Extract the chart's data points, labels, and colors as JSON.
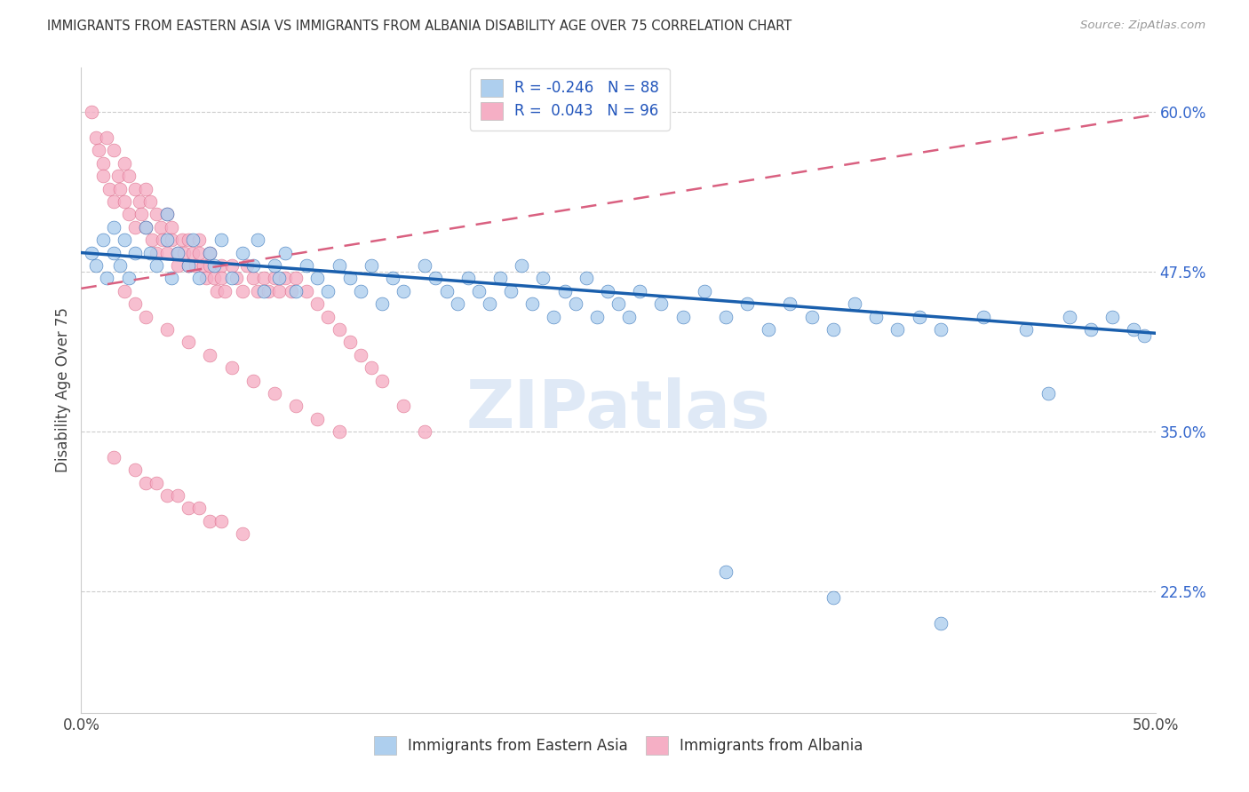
{
  "title": "IMMIGRANTS FROM EASTERN ASIA VS IMMIGRANTS FROM ALBANIA DISABILITY AGE OVER 75 CORRELATION CHART",
  "source": "Source: ZipAtlas.com",
  "ylabel": "Disability Age Over 75",
  "legend_label1": "Immigrants from Eastern Asia",
  "legend_label2": "Immigrants from Albania",
  "R1": -0.246,
  "N1": 88,
  "R2": 0.043,
  "N2": 96,
  "xmin": 0.0,
  "xmax": 0.5,
  "ymin": 0.13,
  "ymax": 0.635,
  "yticks": [
    0.225,
    0.35,
    0.475,
    0.6
  ],
  "ytick_labels": [
    "22.5%",
    "35.0%",
    "47.5%",
    "60.0%"
  ],
  "color_blue": "#aecfee",
  "color_pink": "#f5afc5",
  "line_blue": "#1a5fad",
  "line_pink": "#d96080",
  "watermark_text": "ZIPatlas",
  "background_color": "#ffffff",
  "blue_trend_x0": 0.0,
  "blue_trend_y0": 0.49,
  "blue_trend_x1": 0.5,
  "blue_trend_y1": 0.427,
  "pink_trend_x0": 0.0,
  "pink_trend_y0": 0.462,
  "pink_trend_x1": 0.5,
  "pink_trend_y1": 0.598,
  "blue_x": [
    0.005,
    0.007,
    0.01,
    0.012,
    0.015,
    0.015,
    0.018,
    0.02,
    0.022,
    0.025,
    0.03,
    0.032,
    0.035,
    0.04,
    0.04,
    0.042,
    0.045,
    0.05,
    0.052,
    0.055,
    0.06,
    0.062,
    0.065,
    0.07,
    0.075,
    0.08,
    0.082,
    0.085,
    0.09,
    0.092,
    0.095,
    0.1,
    0.105,
    0.11,
    0.115,
    0.12,
    0.125,
    0.13,
    0.135,
    0.14,
    0.145,
    0.15,
    0.16,
    0.165,
    0.17,
    0.175,
    0.18,
    0.185,
    0.19,
    0.195,
    0.2,
    0.205,
    0.21,
    0.215,
    0.22,
    0.225,
    0.23,
    0.235,
    0.24,
    0.245,
    0.25,
    0.255,
    0.26,
    0.27,
    0.28,
    0.29,
    0.3,
    0.31,
    0.32,
    0.33,
    0.34,
    0.35,
    0.36,
    0.37,
    0.38,
    0.39,
    0.4,
    0.42,
    0.44,
    0.46,
    0.47,
    0.48,
    0.49,
    0.495,
    0.3,
    0.35,
    0.4,
    0.45
  ],
  "blue_y": [
    0.49,
    0.48,
    0.5,
    0.47,
    0.49,
    0.51,
    0.48,
    0.5,
    0.47,
    0.49,
    0.51,
    0.49,
    0.48,
    0.5,
    0.52,
    0.47,
    0.49,
    0.48,
    0.5,
    0.47,
    0.49,
    0.48,
    0.5,
    0.47,
    0.49,
    0.48,
    0.5,
    0.46,
    0.48,
    0.47,
    0.49,
    0.46,
    0.48,
    0.47,
    0.46,
    0.48,
    0.47,
    0.46,
    0.48,
    0.45,
    0.47,
    0.46,
    0.48,
    0.47,
    0.46,
    0.45,
    0.47,
    0.46,
    0.45,
    0.47,
    0.46,
    0.48,
    0.45,
    0.47,
    0.44,
    0.46,
    0.45,
    0.47,
    0.44,
    0.46,
    0.45,
    0.44,
    0.46,
    0.45,
    0.44,
    0.46,
    0.44,
    0.45,
    0.43,
    0.45,
    0.44,
    0.43,
    0.45,
    0.44,
    0.43,
    0.44,
    0.43,
    0.44,
    0.43,
    0.44,
    0.43,
    0.44,
    0.43,
    0.425,
    0.24,
    0.22,
    0.2,
    0.38
  ],
  "pink_x": [
    0.005,
    0.007,
    0.008,
    0.01,
    0.01,
    0.012,
    0.013,
    0.015,
    0.015,
    0.017,
    0.018,
    0.02,
    0.02,
    0.022,
    0.022,
    0.025,
    0.025,
    0.027,
    0.028,
    0.03,
    0.03,
    0.032,
    0.033,
    0.035,
    0.035,
    0.037,
    0.038,
    0.04,
    0.04,
    0.042,
    0.042,
    0.045,
    0.045,
    0.047,
    0.048,
    0.05,
    0.05,
    0.052,
    0.053,
    0.055,
    0.055,
    0.057,
    0.058,
    0.06,
    0.06,
    0.062,
    0.063,
    0.065,
    0.065,
    0.067,
    0.07,
    0.072,
    0.075,
    0.077,
    0.08,
    0.082,
    0.085,
    0.087,
    0.09,
    0.092,
    0.095,
    0.098,
    0.1,
    0.105,
    0.11,
    0.115,
    0.12,
    0.125,
    0.13,
    0.135,
    0.14,
    0.15,
    0.16,
    0.02,
    0.025,
    0.03,
    0.04,
    0.05,
    0.06,
    0.07,
    0.08,
    0.09,
    0.1,
    0.11,
    0.12,
    0.03,
    0.04,
    0.05,
    0.06,
    0.015,
    0.025,
    0.035,
    0.045,
    0.055,
    0.065,
    0.075
  ],
  "pink_y": [
    0.6,
    0.58,
    0.57,
    0.56,
    0.55,
    0.58,
    0.54,
    0.57,
    0.53,
    0.55,
    0.54,
    0.56,
    0.53,
    0.55,
    0.52,
    0.54,
    0.51,
    0.53,
    0.52,
    0.54,
    0.51,
    0.53,
    0.5,
    0.52,
    0.49,
    0.51,
    0.5,
    0.52,
    0.49,
    0.51,
    0.5,
    0.49,
    0.48,
    0.5,
    0.49,
    0.48,
    0.5,
    0.49,
    0.48,
    0.5,
    0.49,
    0.48,
    0.47,
    0.49,
    0.48,
    0.47,
    0.46,
    0.48,
    0.47,
    0.46,
    0.48,
    0.47,
    0.46,
    0.48,
    0.47,
    0.46,
    0.47,
    0.46,
    0.47,
    0.46,
    0.47,
    0.46,
    0.47,
    0.46,
    0.45,
    0.44,
    0.43,
    0.42,
    0.41,
    0.4,
    0.39,
    0.37,
    0.35,
    0.46,
    0.45,
    0.44,
    0.43,
    0.42,
    0.41,
    0.4,
    0.39,
    0.38,
    0.37,
    0.36,
    0.35,
    0.31,
    0.3,
    0.29,
    0.28,
    0.33,
    0.32,
    0.31,
    0.3,
    0.29,
    0.28,
    0.27
  ]
}
